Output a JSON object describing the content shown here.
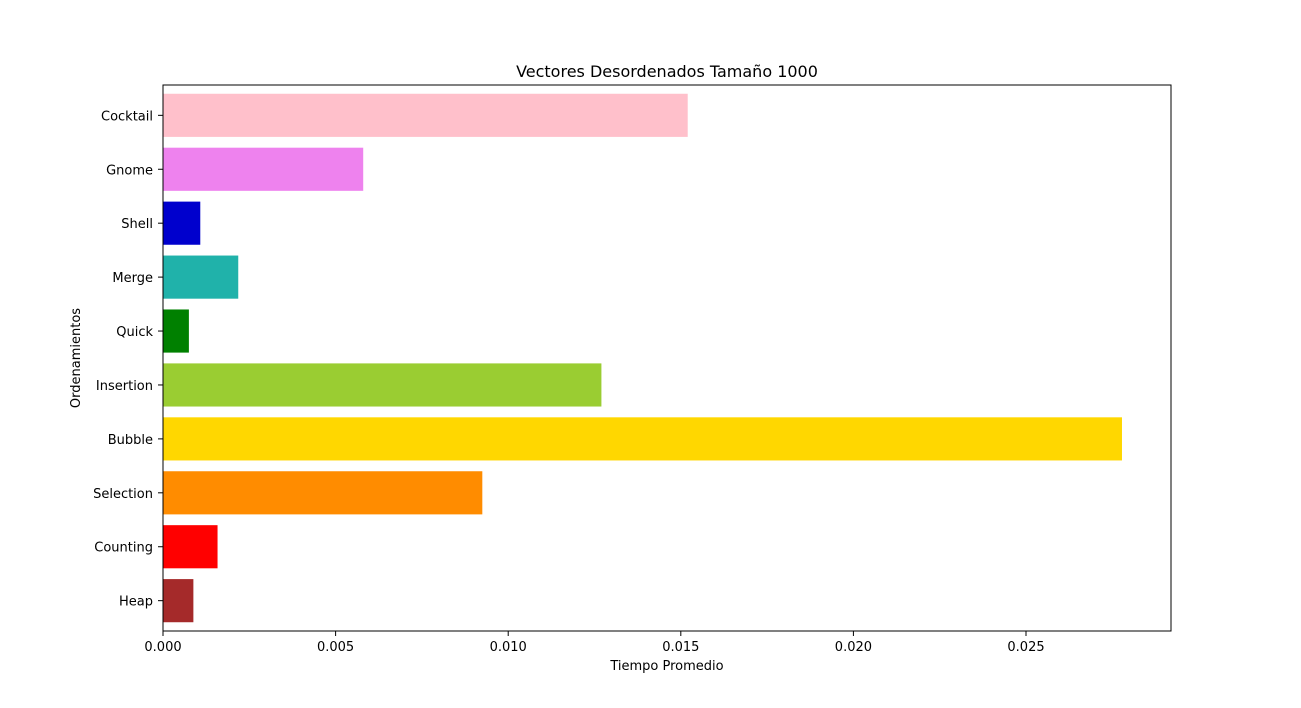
{
  "chart_data": {
    "type": "bar",
    "orientation": "horizontal",
    "title": "Vectores Desordenados Tamaño 1000",
    "xlabel": "Tiempo Promedio",
    "ylabel": "Ordenamientos",
    "xlim": [
      0,
      0.0292
    ],
    "xticks": [
      0.0,
      0.005,
      0.01,
      0.015,
      0.02,
      0.025
    ],
    "xtick_labels": [
      "0.000",
      "0.005",
      "0.010",
      "0.015",
      "0.020",
      "0.025"
    ],
    "categories": [
      "Heap",
      "Counting",
      "Selection",
      "Bubble",
      "Insertion",
      "Quick",
      "Merge",
      "Shell",
      "Gnome",
      "Cocktail"
    ],
    "values": [
      0.00088,
      0.00158,
      0.00925,
      0.02778,
      0.0127,
      0.00075,
      0.00218,
      0.00108,
      0.0058,
      0.0152
    ],
    "colors": [
      "#a52a2a",
      "#ff0000",
      "#ff8c00",
      "#ffd700",
      "#9acd32",
      "#008000",
      "#20b2aa",
      "#0000cd",
      "#ee82ee",
      "#ffc0cb"
    ],
    "grid": false,
    "legend": "none"
  }
}
